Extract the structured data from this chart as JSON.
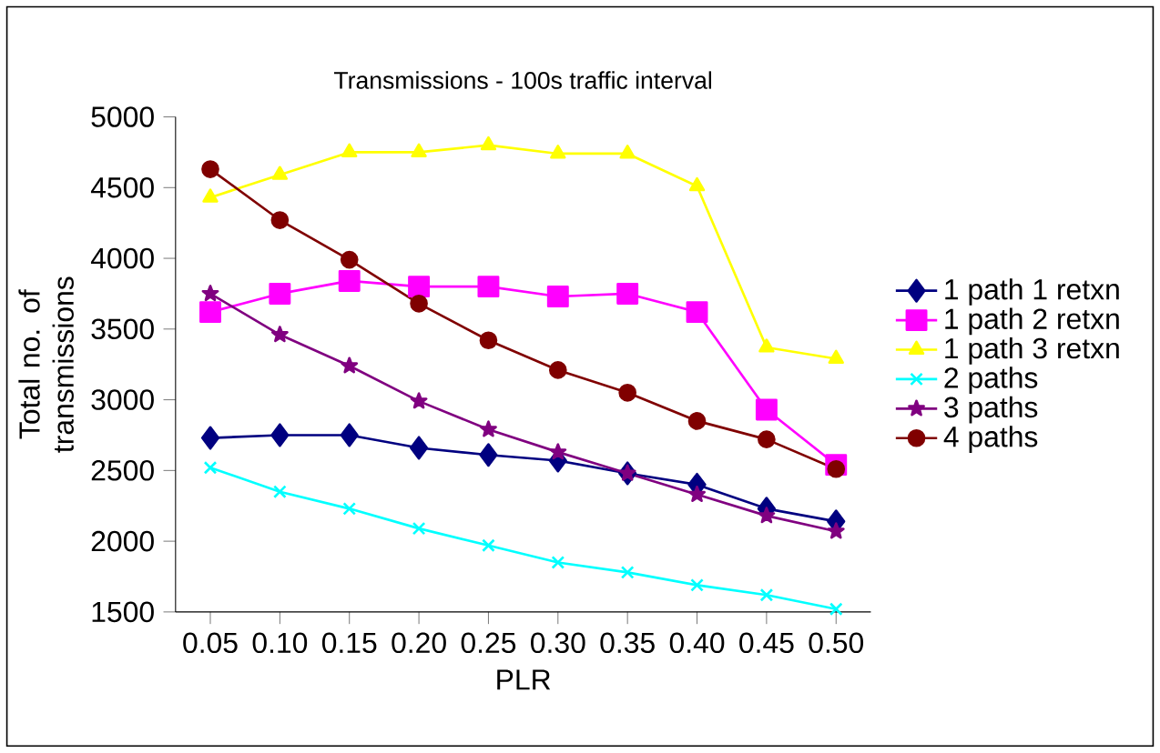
{
  "chart_data": {
    "type": "line",
    "title": "Transmissions - 100s traffic interval",
    "xlabel": "PLR",
    "ylabel": "Total no. of transmissions",
    "categories": [
      "0.05",
      "0.10",
      "0.15",
      "0.20",
      "0.25",
      "0.30",
      "0.35",
      "0.40",
      "0.45",
      "0.50"
    ],
    "ylim": [
      1500,
      5000
    ],
    "yticks": [
      1500,
      2000,
      2500,
      3000,
      3500,
      4000,
      4500,
      5000
    ],
    "grid": false,
    "legend": "right",
    "series": [
      {
        "name": "1 path 1 retxn",
        "color": "#000080",
        "marker": "diamond",
        "values": [
          2730,
          2750,
          2750,
          2660,
          2610,
          2570,
          2480,
          2400,
          2230,
          2140
        ]
      },
      {
        "name": "1 path 2 retxn",
        "color": "#ff00ff",
        "marker": "square",
        "values": [
          3620,
          3750,
          3840,
          3800,
          3800,
          3730,
          3750,
          3620,
          2930,
          2540
        ]
      },
      {
        "name": "1 path 3 retxn",
        "color": "#ffff00",
        "marker": "triangle",
        "values": [
          4430,
          4590,
          4750,
          4750,
          4800,
          4740,
          4740,
          4510,
          3370,
          3290
        ]
      },
      {
        "name": "2 paths",
        "color": "#00ffff",
        "marker": "cross",
        "values": [
          2520,
          2350,
          2230,
          2090,
          1970,
          1850,
          1780,
          1690,
          1620,
          1520
        ]
      },
      {
        "name": "3 paths",
        "color": "#800080",
        "marker": "star",
        "values": [
          3750,
          3460,
          3240,
          2990,
          2790,
          2630,
          2480,
          2330,
          2180,
          2070
        ]
      },
      {
        "name": "4 paths",
        "color": "#800000",
        "marker": "circle",
        "values": [
          4630,
          4270,
          3990,
          3680,
          3420,
          3210,
          3050,
          2850,
          2720,
          2510
        ]
      }
    ]
  }
}
